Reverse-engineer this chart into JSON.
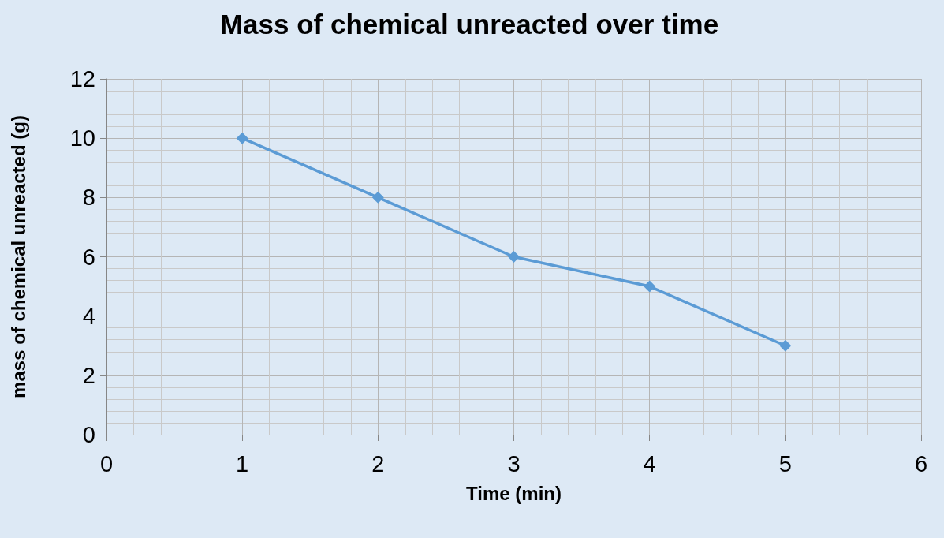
{
  "chart_data": {
    "type": "line",
    "title": "Mass of chemical unreacted over time",
    "xlabel": "Time (min)",
    "ylabel": "mass of chemical unreacted (g)",
    "x": [
      1,
      2,
      3,
      4,
      5
    ],
    "series": [
      {
        "color": "#5b9bd5",
        "values": [
          10,
          8,
          6,
          5,
          3
        ]
      }
    ],
    "xlim": [
      0,
      6
    ],
    "xticks": [
      0,
      1,
      2,
      3,
      4,
      5,
      6
    ],
    "ylim": [
      0,
      12
    ],
    "yticks": [
      0,
      2,
      4,
      6,
      8,
      10,
      12
    ],
    "grid": true,
    "marker": "diamond",
    "line_style": "solid"
  }
}
